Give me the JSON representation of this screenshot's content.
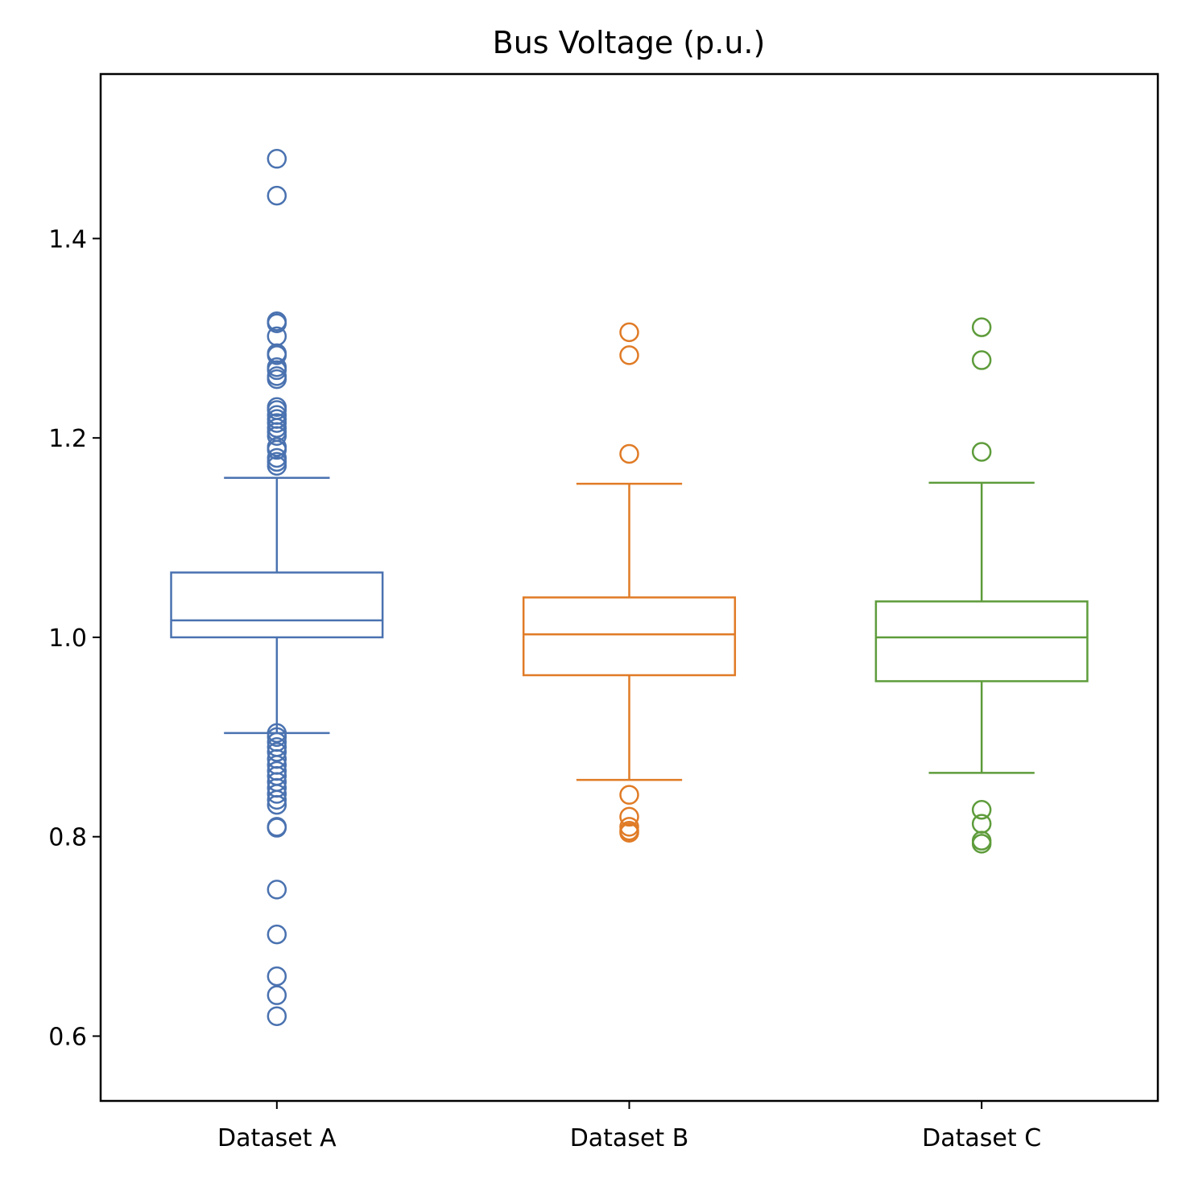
{
  "chart_data": {
    "type": "box",
    "title": "Bus Voltage (p.u.)",
    "xlabel": "",
    "ylabel": "",
    "ylim": [
      0.535,
      1.565
    ],
    "yticks": [
      "0.6",
      "0.8",
      "1.0",
      "1.2",
      "1.4"
    ],
    "ytick_values": [
      0.6,
      0.8,
      1.0,
      1.2,
      1.4
    ],
    "grid": false,
    "categories": [
      "Dataset A",
      "Dataset B",
      "Dataset C"
    ],
    "series": [
      {
        "color": "#4a72b0",
        "whisker_low": 0.904,
        "q1": 1.0,
        "median": 1.017,
        "q3": 1.065,
        "whisker_high": 1.16,
        "outliers": [
          1.48,
          1.443,
          1.317,
          1.315,
          1.302,
          1.285,
          1.283,
          1.271,
          1.268,
          1.262,
          1.259,
          1.231,
          1.228,
          1.223,
          1.219,
          1.215,
          1.21,
          1.206,
          1.202,
          1.191,
          1.188,
          1.18,
          1.176,
          1.172,
          0.904,
          0.9,
          0.895,
          0.89,
          0.885,
          0.878,
          0.872,
          0.866,
          0.861,
          0.855,
          0.849,
          0.843,
          0.837,
          0.832,
          0.81,
          0.809,
          0.747,
          0.702,
          0.66,
          0.641,
          0.62
        ]
      },
      {
        "color": "#e07b26",
        "whisker_low": 0.857,
        "q1": 0.962,
        "median": 1.003,
        "q3": 1.04,
        "whisker_high": 1.154,
        "outliers": [
          1.306,
          1.283,
          1.184,
          0.842,
          0.82,
          0.81,
          0.806,
          0.804
        ]
      },
      {
        "color": "#5e9c3b",
        "whisker_low": 0.864,
        "q1": 0.956,
        "median": 1.0,
        "q3": 1.036,
        "whisker_high": 1.155,
        "outliers": [
          1.311,
          1.278,
          1.186,
          0.827,
          0.813,
          0.796,
          0.793
        ]
      }
    ]
  }
}
